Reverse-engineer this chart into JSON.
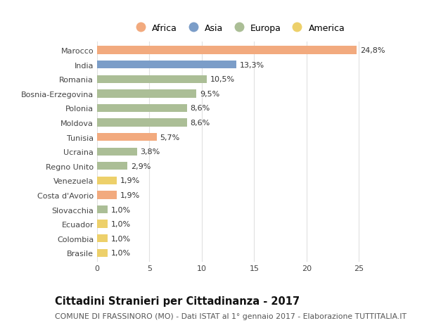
{
  "categories": [
    "Marocco",
    "India",
    "Romania",
    "Bosnia-Erzegovina",
    "Polonia",
    "Moldova",
    "Tunisia",
    "Ucraina",
    "Regno Unito",
    "Venezuela",
    "Costa d'Avorio",
    "Slovacchia",
    "Ecuador",
    "Colombia",
    "Brasile"
  ],
  "values": [
    24.8,
    13.3,
    10.5,
    9.5,
    8.6,
    8.6,
    5.7,
    3.8,
    2.9,
    1.9,
    1.9,
    1.0,
    1.0,
    1.0,
    1.0
  ],
  "labels": [
    "24,8%",
    "13,3%",
    "10,5%",
    "9,5%",
    "8,6%",
    "8,6%",
    "5,7%",
    "3,8%",
    "2,9%",
    "1,9%",
    "1,9%",
    "1,0%",
    "1,0%",
    "1,0%",
    "1,0%"
  ],
  "continents": [
    "Africa",
    "Asia",
    "Europa",
    "Europa",
    "Europa",
    "Europa",
    "Africa",
    "Europa",
    "Europa",
    "America",
    "Africa",
    "Europa",
    "America",
    "America",
    "America"
  ],
  "colors": {
    "Africa": "#F2AA7E",
    "Asia": "#7B9DC8",
    "Europa": "#ABBE96",
    "America": "#EDD06A"
  },
  "legend_order": [
    "Africa",
    "Asia",
    "Europa",
    "America"
  ],
  "xlim": [
    0,
    27
  ],
  "xticks": [
    0,
    5,
    10,
    15,
    20,
    25
  ],
  "background_color": "#ffffff",
  "grid_color": "#e0e0e0",
  "title": "Cittadini Stranieri per Cittadinanza - 2017",
  "subtitle": "COMUNE DI FRASSINORO (MO) - Dati ISTAT al 1° gennaio 2017 - Elaborazione TUTTITALIA.IT",
  "title_fontsize": 10.5,
  "subtitle_fontsize": 7.8,
  "bar_height": 0.55,
  "label_fontsize": 8,
  "ytick_fontsize": 8,
  "xtick_fontsize": 8
}
